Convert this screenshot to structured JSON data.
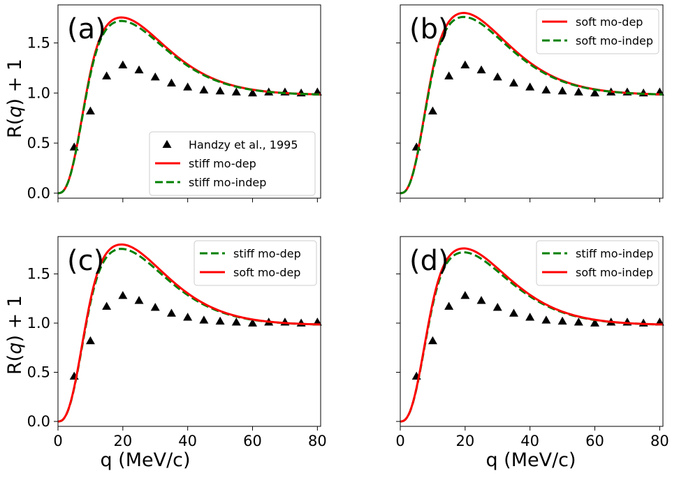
{
  "chart_data": {
    "type": "line",
    "x_axis_label": "q (MeV/c)",
    "y_axis_label": "R(q) + 1",
    "x_ticks": [
      "0",
      "20",
      "40",
      "60",
      "80"
    ],
    "y_ticks": [
      "0.0",
      "0.5",
      "1.0",
      "1.5"
    ],
    "xlim": [
      0,
      81
    ],
    "ylim": [
      -0.05,
      1.88
    ],
    "experiment": {
      "name": "Handzy et al., 1995",
      "q": [
        5,
        10,
        15,
        20,
        25,
        30,
        35,
        40,
        45,
        50,
        55,
        60,
        65,
        70,
        75,
        80
      ],
      "values": [
        0.46,
        0.82,
        1.17,
        1.28,
        1.23,
        1.16,
        1.1,
        1.06,
        1.03,
        1.02,
        1.01,
        1.0,
        1.01,
        1.01,
        1.0,
        1.01
      ]
    },
    "panels": [
      {
        "label": "(a)",
        "legend_position": "lower-right",
        "show_experiment_in_legend": true,
        "series": [
          {
            "name": "stiff mo-dep",
            "color": "#ff0000",
            "style": "solid",
            "peak": 1.755,
            "peak_q": 19.5
          },
          {
            "name": "stiff mo-indep",
            "color": "#008000",
            "style": "dashed",
            "peak": 1.72,
            "peak_q": 19.5
          }
        ]
      },
      {
        "label": "(b)",
        "legend_position": "top-right",
        "show_experiment_in_legend": false,
        "series": [
          {
            "name": "soft mo-dep",
            "color": "#ff0000",
            "style": "solid",
            "peak": 1.8,
            "peak_q": 19.5
          },
          {
            "name": "soft mo-indep",
            "color": "#008000",
            "style": "dashed",
            "peak": 1.76,
            "peak_q": 19.5
          }
        ]
      },
      {
        "label": "(c)",
        "legend_position": "top-right",
        "show_experiment_in_legend": false,
        "series": [
          {
            "name": "stiff mo-dep",
            "color": "#008000",
            "style": "dashed",
            "peak": 1.755,
            "peak_q": 19.5
          },
          {
            "name": "soft mo-dep",
            "color": "#ff0000",
            "style": "solid",
            "peak": 1.8,
            "peak_q": 19.5
          }
        ]
      },
      {
        "label": "(d)",
        "legend_position": "top-right",
        "show_experiment_in_legend": false,
        "series": [
          {
            "name": "stiff mo-indep",
            "color": "#008000",
            "style": "dashed",
            "peak": 1.72,
            "peak_q": 19.5
          },
          {
            "name": "soft mo-indep",
            "color": "#ff0000",
            "style": "solid",
            "peak": 1.76,
            "peak_q": 19.5
          }
        ]
      }
    ]
  }
}
